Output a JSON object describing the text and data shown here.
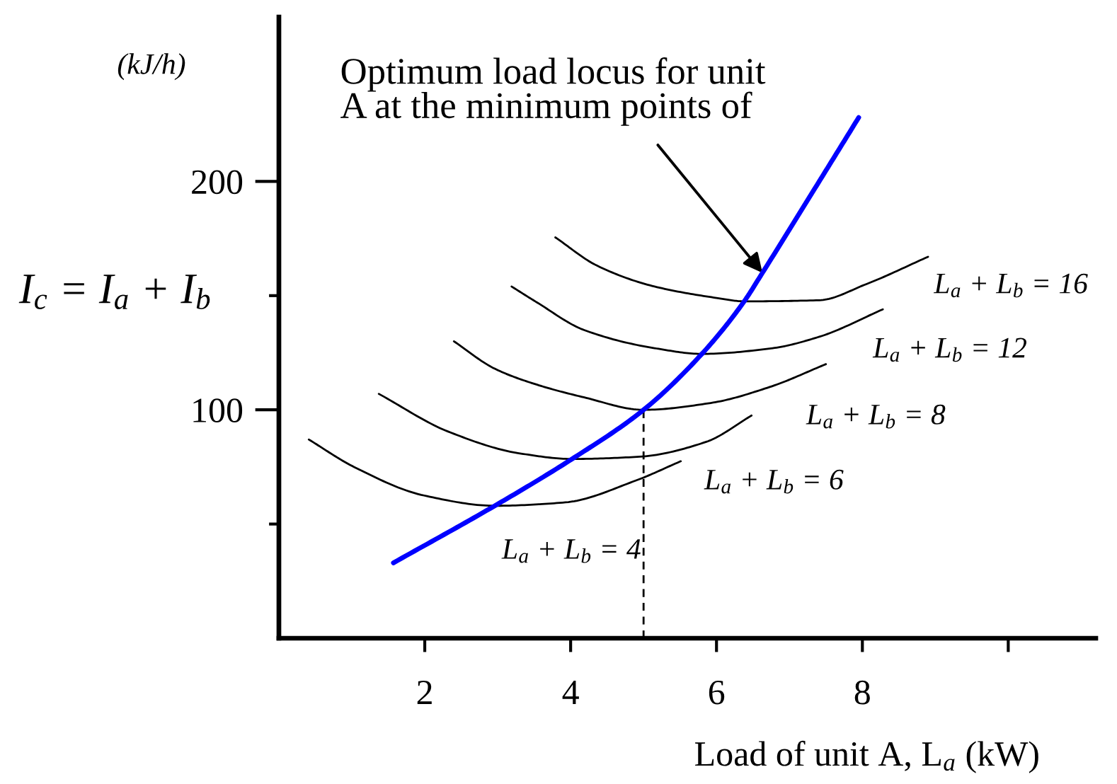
{
  "chart_data": {
    "type": "line",
    "xlabel": "Load of unit A, L$_{a}$ (kW)",
    "ylabel": "I$_{c}$ = I$_{a}$ + I$_{b}$",
    "xlim": [
      0,
      11.2
    ],
    "ylim": [
      0,
      272
    ],
    "xticks": [
      2,
      4,
      6,
      8,
      {
        "value": 10,
        "label": null
      }
    ],
    "yticks": [
      {
        "value": 50,
        "label": null
      },
      100,
      {
        "value": 150,
        "label": null
      },
      200
    ],
    "annotations": [
      {
        "text": "Optimum load locus for unit\nA at the minimum points of",
        "x": 6.63,
        "y": 160
      },
      "(kJ/h)"
    ],
    "series": [
      {
        "color": "#0000ff",
        "x": [
          1.57,
          2.96,
          4.02,
          5,
          5.8,
          6.38,
          6.63,
          7.35,
          7.95
        ],
        "values": [
          33,
          58,
          78.5,
          100,
          124.5,
          147.5,
          160,
          197,
          228
        ]
      },
      {
        "name": "L$_{a}$ + L$_{b}$ = 4",
        "color": "#000000",
        "x": [
          0.41,
          1.03,
          1.99,
          2.96,
          3.93,
          4.89,
          5.51
        ],
        "values": [
          87,
          75,
          62.5,
          58,
          59.5,
          69,
          77.5
        ]
      },
      {
        "name": "L$_{a}$ + L$_{b}$ = 6",
        "color": "#000000",
        "x": [
          1.37,
          2.32,
          3.29,
          4.02,
          4.95,
          5.86,
          6.48
        ],
        "values": [
          107,
          90.5,
          81,
          78.5,
          79.5,
          86,
          97.5
        ]
      },
      {
        "name": "L$_{a}$ + L$_{b}$ = 8",
        "color": "#000000",
        "x": [
          2.4,
          2.96,
          3.54,
          4.18,
          5,
          5.92,
          6.73,
          7.5
        ],
        "values": [
          130,
          118,
          111,
          105.5,
          100,
          103,
          110,
          120
        ]
      },
      {
        "name": "L$_{a}$ + L$_{b}$ = 12",
        "color": "#000000",
        "x": [
          3.19,
          3.54,
          4.18,
          5.15,
          5.8,
          6.77,
          7.41,
          8.28
        ],
        "values": [
          154,
          147,
          135,
          127,
          124.5,
          127,
          132,
          144
        ]
      },
      {
        "name": "L$_{a}$ + L$_{b}$ = 16",
        "color": "#000000",
        "x": [
          3.79,
          4.37,
          5.15,
          6.0,
          6.38,
          7.41,
          8.05,
          8.9
        ],
        "values": [
          175.5,
          163,
          154,
          149,
          147.5,
          148,
          155,
          167
        ]
      },
      {
        "color": "#000000",
        "line_style": "dashed",
        "x": [
          5,
          5
        ],
        "values": [
          0,
          100
        ]
      }
    ]
  }
}
